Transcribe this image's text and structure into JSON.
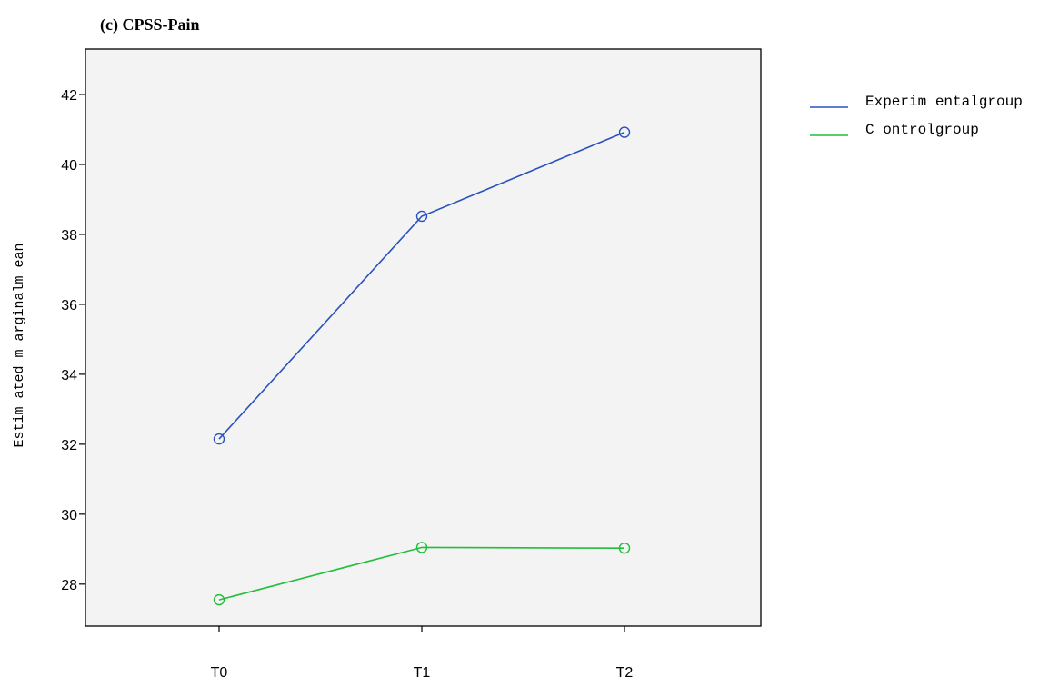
{
  "chart_data": {
    "type": "line",
    "title": "(c)   CPSS-Pain",
    "xlabel": "",
    "ylabel": "Estim ated m arginalm ean",
    "categories": [
      "T0",
      "T1",
      "T2"
    ],
    "y_ticks": [
      28,
      30,
      32,
      34,
      36,
      38,
      40,
      42
    ],
    "ylim": [
      26.8,
      43.3
    ],
    "grid": false,
    "legend_position": "right",
    "series": [
      {
        "name": "Experim entalgroup",
        "color": "#2a52be",
        "values": [
          32.15,
          38.52,
          40.92
        ]
      },
      {
        "name": "C ontrolgroup",
        "color": "#1fbf3a",
        "values": [
          27.55,
          29.05,
          29.03
        ]
      }
    ]
  }
}
